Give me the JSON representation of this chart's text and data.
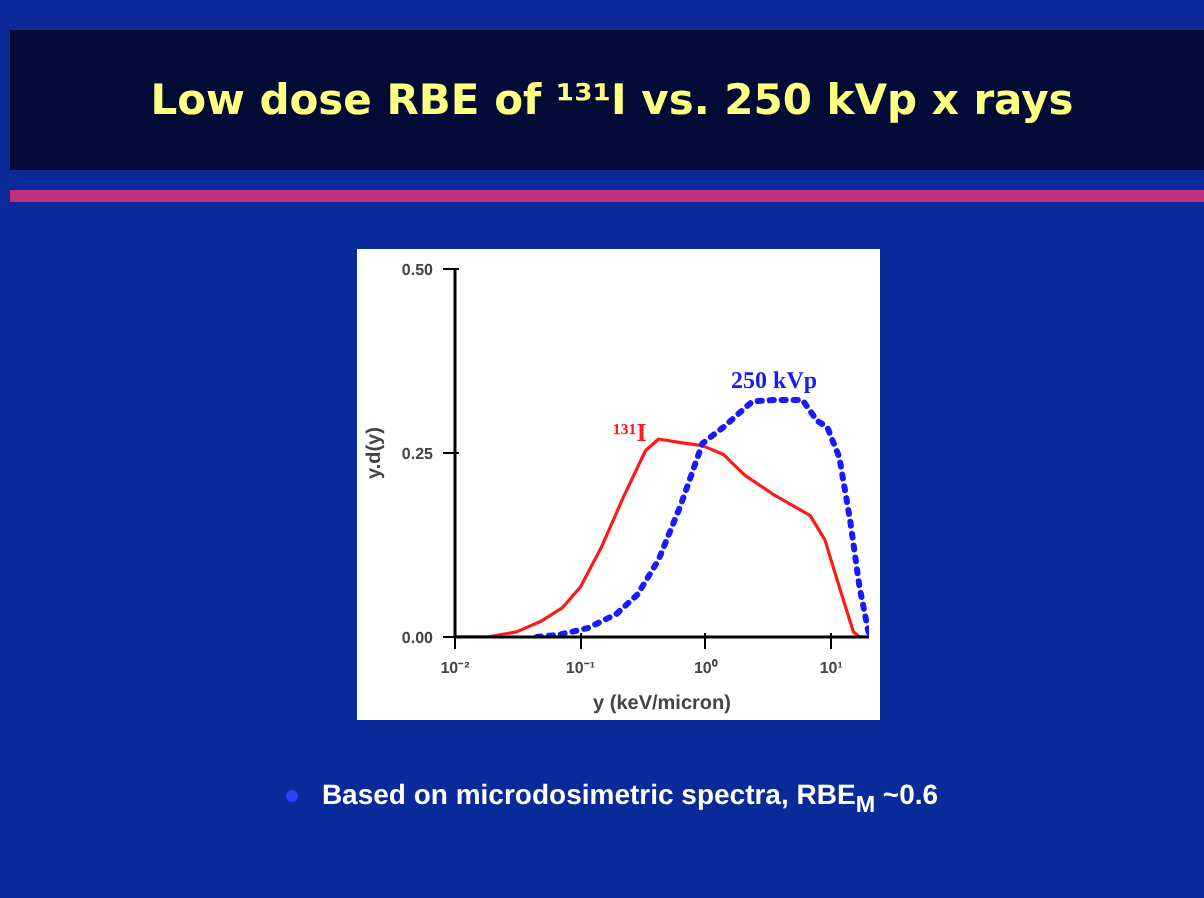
{
  "chart_data": {
    "type": "line",
    "title": "Low dose RBE of ¹³¹I vs. 250 kVp x rays",
    "xlabel": "y (keV/micron)",
    "ylabel": "y.d(y)",
    "log": "x",
    "grid": false,
    "xlim": [
      0.01,
      20
    ],
    "ylim": [
      0,
      0.5
    ],
    "xticks": [
      {
        "value": 0.01,
        "label": "10⁻²"
      },
      {
        "value": 0.1,
        "label": "10⁻¹"
      },
      {
        "value": 1,
        "label": "10⁰"
      },
      {
        "value": 10,
        "label": "10¹"
      }
    ],
    "yticks": [
      {
        "value": 0,
        "label": "0.00"
      },
      {
        "value": 0.25,
        "label": "0.25"
      },
      {
        "value": 0.5,
        "label": "0.50"
      }
    ],
    "series": [
      {
        "name": "¹³¹I",
        "color": "#ff1a1a",
        "line_style": "solid",
        "x": [
          0.01,
          0.018,
          0.031,
          0.048,
          0.072,
          0.1,
          0.148,
          0.22,
          0.33,
          0.42,
          0.63,
          0.94,
          1.38,
          2.04,
          3.5,
          6.8,
          8.9,
          11.6,
          15,
          16.8,
          20
        ],
        "values": [
          0,
          0,
          0.007,
          0.021,
          0.04,
          0.068,
          0.123,
          0.19,
          0.253,
          0.269,
          0.264,
          0.26,
          0.248,
          0.22,
          0.193,
          0.165,
          0.132,
          0.068,
          0.007,
          0,
          0
        ]
      },
      {
        "name": "250 kVp",
        "color": "#1a1aff",
        "line_style": "dotted",
        "x": [
          0.045,
          0.067,
          0.114,
          0.193,
          0.286,
          0.42,
          0.63,
          0.94,
          1.38,
          2.35,
          3.5,
          5.9,
          7.7,
          9.3,
          11.6,
          14.1,
          16.8,
          20
        ],
        "values": [
          0,
          0.003,
          0.012,
          0.031,
          0.058,
          0.105,
          0.179,
          0.263,
          0.285,
          0.32,
          0.322,
          0.322,
          0.294,
          0.285,
          0.244,
          0.16,
          0.068,
          0.003
        ]
      }
    ],
    "annotations": [
      "Based on microdosimetric spectra, RBE$_{M}$ ~0.6"
    ]
  }
}
